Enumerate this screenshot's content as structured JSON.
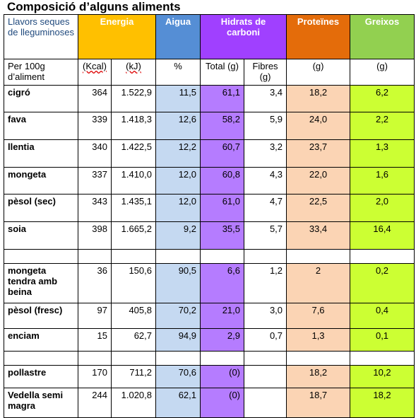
{
  "header": {
    "title": "Composició d’alguns aliments"
  },
  "table": {
    "head1": [
      "Llavors seques de lleguminoses",
      "Energia",
      "Aigua",
      "Hidrats de carboni",
      "Proteïnes",
      "Greixos"
    ],
    "head2": [
      "Per 100g d’aliment",
      "(Kcal)",
      "(kJ)",
      "%",
      "Total (g)",
      "Fibres (g)",
      "(g)",
      "(g)"
    ],
    "groups": [
      [
        [
          "cigró",
          "364",
          "1.522,9",
          "11,5",
          "61,1",
          "3,4",
          "18,2",
          "6,2"
        ],
        [
          "fava",
          "339",
          "1.418,3",
          "12,6",
          "58,2",
          "5,9",
          "24,0",
          "2,2"
        ],
        [
          "llentia",
          "340",
          "1.422,5",
          "12,2",
          "60,7",
          "3,2",
          "23,7",
          "1,3"
        ],
        [
          "mongeta",
          "337",
          "1.410,0",
          "12,0",
          "60,8",
          "4,3",
          "22,0",
          "1,6"
        ],
        [
          "pèsol (sec)",
          "343",
          "1.435,1",
          "12,0",
          "61,0",
          "4,7",
          "22,5",
          "2,0"
        ],
        [
          "soia",
          "398",
          "1.665,2",
          "9,2",
          "35,5",
          "5,7",
          "33,4",
          "16,4"
        ]
      ],
      [
        [
          "mongeta tendra amb beina",
          "36",
          "150,6",
          "90,5",
          "6,6",
          "1,2",
          "2",
          "0,2"
        ],
        [
          "pèsol (fresc)",
          "97",
          "405,8",
          "70,2",
          "21,0",
          "3,0",
          "7,6",
          "0,4"
        ],
        [
          "enciam",
          "15",
          "62,7",
          "94,9",
          "2,9",
          "0,7",
          "1,3",
          "0,1"
        ]
      ],
      [
        [
          "pollastre",
          "170",
          "711,2",
          "70,6",
          "(0)",
          null,
          "18,2",
          "10,2"
        ],
        [
          "Vedella semi magra",
          "244",
          "1.020,8",
          "62,1",
          "(0)",
          null,
          "18,7",
          "18,2"
        ]
      ]
    ]
  }
}
